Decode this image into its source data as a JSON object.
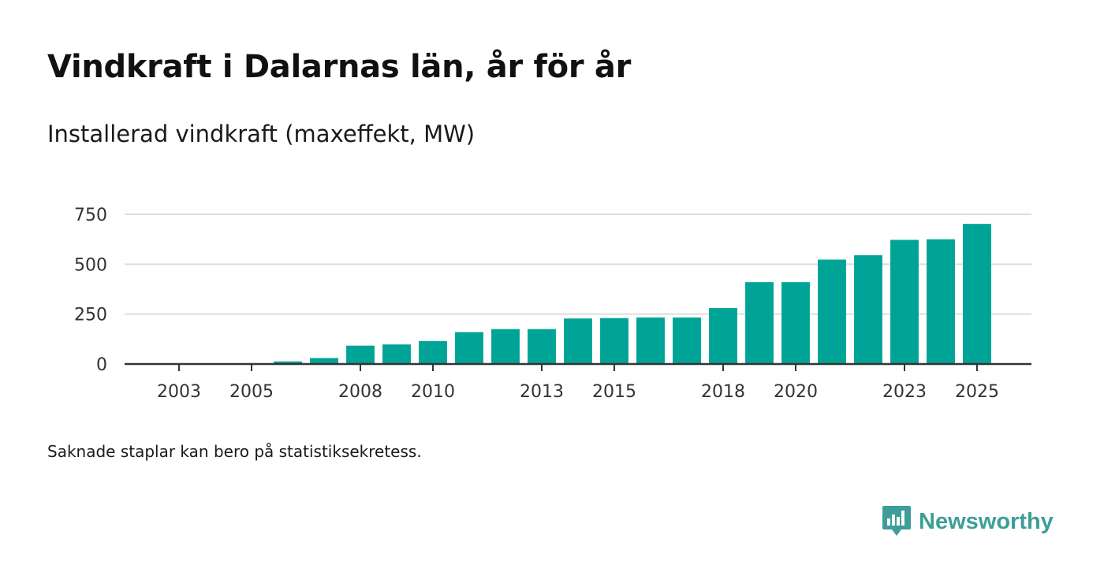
{
  "title": "Vindkraft i Dalarnas län, år för år",
  "subtitle": "Installerad vindkraft (maxeffekt, MW)",
  "note": "Saknade staplar kan bero på statistiksekretess.",
  "brand": {
    "name": "Newsworthy",
    "color": "#3d9e98",
    "icon": "newsworthy-logo-icon"
  },
  "colors": {
    "bar": "#00a497",
    "grid": "#dddddd",
    "axis": "#333333",
    "text": "#333333"
  },
  "chart_data": {
    "type": "bar",
    "title": "Vindkraft i Dalarnas län, år för år",
    "ylabel": "Installerad vindkraft (maxeffekt, MW)",
    "xlabel": "",
    "categories": [
      "2003",
      "2004",
      "2005",
      "2006",
      "2007",
      "2008",
      "2009",
      "2010",
      "2011",
      "2012",
      "2013",
      "2014",
      "2015",
      "2016",
      "2017",
      "2018",
      "2019",
      "2020",
      "2021",
      "2022",
      "2023",
      "2024",
      "2025"
    ],
    "values": [
      0,
      0,
      0,
      13,
      30,
      92,
      98,
      115,
      160,
      175,
      175,
      228,
      230,
      233,
      233,
      280,
      410,
      410,
      523,
      545,
      622,
      625,
      702
    ],
    "x_tick_labels": [
      "2003",
      "2005",
      "2008",
      "2010",
      "2013",
      "2015",
      "2018",
      "2020",
      "2023",
      "2025"
    ],
    "y_ticks": [
      0,
      250,
      500,
      750
    ],
    "y_tick_labels": [
      "0",
      "250",
      "500",
      "750"
    ],
    "ylim": [
      0,
      800
    ],
    "grid": true,
    "legend": "none"
  }
}
